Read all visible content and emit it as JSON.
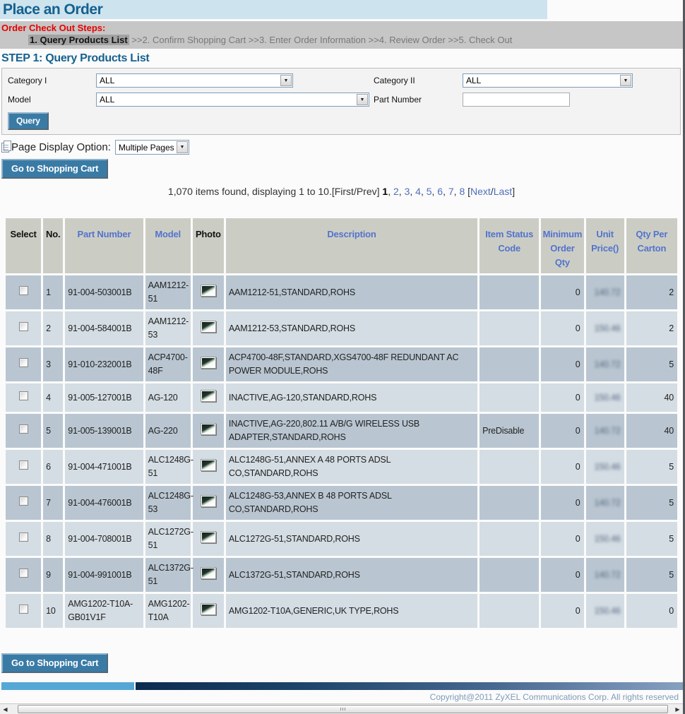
{
  "page": {
    "title": "Place an Order"
  },
  "steps": {
    "heading": "Order Check Out Steps:",
    "current": "1. Query Products List",
    "rest": " >>2. Confirm Shopping Cart >>3. Enter Order Information >>4. Review Order >>5. Check Out"
  },
  "step1": {
    "heading": "STEP 1: Query Products List"
  },
  "filters": {
    "category1_label": "Category I",
    "category1_value": "ALL",
    "category2_label": "Category II",
    "category2_value": "ALL",
    "model_label": "Model",
    "model_value": "ALL",
    "part_number_label": "Part Number",
    "part_number_value": "",
    "query_button": "Query"
  },
  "toolbar": {
    "page_display_label": "Page Display Option:",
    "page_display_value": "Multiple Pages",
    "go_to_cart_button": "Go to Shopping Cart"
  },
  "pagination": {
    "summary": "1,070 items found, displaying 1 to 10.",
    "first_prev": "[First/Prev]",
    "current_page": "1",
    "pages": [
      "2",
      "3",
      "4",
      "5",
      "6",
      "7",
      "8"
    ],
    "open_bracket": " [",
    "next_label": "Next",
    "slash": "/",
    "last_label": "Last",
    "close_bracket": "]"
  },
  "table": {
    "columns": [
      {
        "label": "Select"
      },
      {
        "label": "No."
      },
      {
        "label": "Part Number"
      },
      {
        "label": "Model"
      },
      {
        "label": "Photo"
      },
      {
        "label": "Description"
      },
      {
        "label": "Item Status Code"
      },
      {
        "label": "Minimum Order Qty"
      },
      {
        "label": "Unit Price()"
      },
      {
        "label": "Qty Per Carton"
      }
    ],
    "rows": [
      {
        "no": "1",
        "part_number": "91-004-503001B",
        "model": "AAM1212-51",
        "description": "AAM1212-51,STANDARD,ROHS",
        "item_status": "",
        "min_order_qty": "0",
        "unit_price": "140.72",
        "qty_per_carton": "2"
      },
      {
        "no": "2",
        "part_number": "91-004-584001B",
        "model": "AAM1212-53",
        "description": "AAM1212-53,STANDARD,ROHS",
        "item_status": "",
        "min_order_qty": "0",
        "unit_price": "150.46",
        "qty_per_carton": "2"
      },
      {
        "no": "3",
        "part_number": "91-010-232001B",
        "model": "ACP4700-48F",
        "description": "ACP4700-48F,STANDARD,XGS4700-48F REDUNDANT AC POWER MODULE,ROHS",
        "item_status": "",
        "min_order_qty": "0",
        "unit_price": "140.72",
        "qty_per_carton": "5"
      },
      {
        "no": "4",
        "part_number": "91-005-127001B",
        "model": "AG-120",
        "description": "INACTIVE,AG-120,STANDARD,ROHS",
        "item_status": "",
        "min_order_qty": "0",
        "unit_price": "150.46",
        "qty_per_carton": "40"
      },
      {
        "no": "5",
        "part_number": "91-005-139001B",
        "model": "AG-220",
        "description": "INACTIVE,AG-220,802.11 A/B/G WIRELESS USB ADAPTER,STANDARD,ROHS",
        "item_status": "PreDisable",
        "min_order_qty": "0",
        "unit_price": "140.72",
        "qty_per_carton": "40"
      },
      {
        "no": "6",
        "part_number": "91-004-471001B",
        "model": "ALC1248G-51",
        "description": "ALC1248G-51,ANNEX A 48 PORTS ADSL CO,STANDARD,ROHS",
        "item_status": "",
        "min_order_qty": "0",
        "unit_price": "150.46",
        "qty_per_carton": "5"
      },
      {
        "no": "7",
        "part_number": "91-004-476001B",
        "model": "ALC1248G-53",
        "description": "ALC1248G-53,ANNEX B 48 PORTS ADSL CO,STANDARD,ROHS",
        "item_status": "",
        "min_order_qty": "0",
        "unit_price": "140.72",
        "qty_per_carton": "5"
      },
      {
        "no": "8",
        "part_number": "91-004-708001B",
        "model": "ALC1272G-51",
        "description": "ALC1272G-51,STANDARD,ROHS",
        "item_status": "",
        "min_order_qty": "0",
        "unit_price": "150.46",
        "qty_per_carton": "5"
      },
      {
        "no": "9",
        "part_number": "91-004-991001B",
        "model": "ALC1372G-51",
        "description": "ALC1372G-51,STANDARD,ROHS",
        "item_status": "",
        "min_order_qty": "0",
        "unit_price": "140.72",
        "qty_per_carton": "5"
      },
      {
        "no": "10",
        "part_number": "AMG1202-T10A-GB01V1F",
        "model": "AMG1202-T10A",
        "description": "AMG1202-T10A,GENERIC,UK TYPE,ROHS",
        "item_status": "",
        "min_order_qty": "0",
        "unit_price": "150.46",
        "qty_per_carton": "0"
      }
    ]
  },
  "footer": {
    "go_to_cart_button": "Go to Shopping Cart",
    "copyright": "Copyright@2011 ZyXEL Communications Corp. All rights reserved"
  },
  "colors": {
    "title_blue": "#15618f",
    "steps_red": "#e60000",
    "button_blue": "#3a7ba6",
    "header_link_blue": "#5373cc",
    "row_odd": "#b9c6d1",
    "row_even": "#d4dde3",
    "bar_light_blue": "#55a8d5",
    "bar_dark_navy": "#0c2c4e"
  }
}
